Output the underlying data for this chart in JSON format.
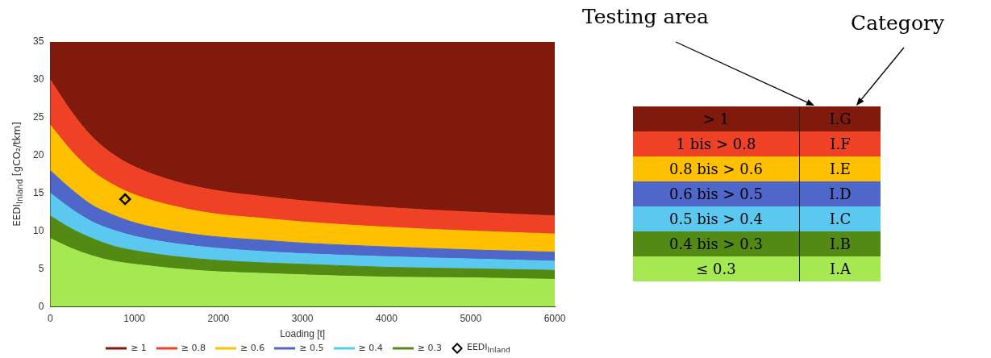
{
  "chart_data": [
    {
      "type": "area",
      "xlabel": "Loading [t]",
      "ylabel": "EEDI$_{Inland}$ [gCO₂/tkm]",
      "x": [
        0,
        250,
        500,
        750,
        1000,
        1500,
        2000,
        2500,
        3000,
        4000,
        5000,
        6000
      ],
      "series": [
        {
          "color": "#a6e851",
          "values": [
            9,
            7.7,
            6.7,
            6,
            5.6,
            5,
            4.6,
            4.4,
            4.2,
            3.9,
            3.8,
            3.6
          ]
        },
        {
          "name": "≥ 0.3",
          "color": "#538a14",
          "values": [
            3,
            2.6,
            2.3,
            2,
            1.8,
            1.6,
            1.5,
            1.4,
            1.4,
            1.3,
            1.2,
            1.2
          ]
        },
        {
          "name": "≥ 0.4",
          "color": "#5bc8f0",
          "values": [
            3,
            2.6,
            2.2,
            2.1,
            1.9,
            1.7,
            1.6,
            1.5,
            1.4,
            1.4,
            1.3,
            1.2
          ]
        },
        {
          "name": "≥ 0.5",
          "color": "#4f67c8",
          "values": [
            3,
            2.6,
            2.2,
            2,
            1.8,
            1.6,
            1.5,
            1.5,
            1.4,
            1.3,
            1.2,
            1.2
          ]
        },
        {
          "name": "≥ 0.6",
          "color": "#ffc000",
          "values": [
            6,
            5.1,
            4.5,
            4,
            3.7,
            3.3,
            3,
            2.9,
            2.8,
            2.6,
            2.5,
            2.4
          ]
        },
        {
          "name": "≥ 0.8",
          "color": "#ee4125",
          "values": [
            6,
            5.2,
            4.5,
            4,
            3.7,
            3.3,
            3.1,
            2.9,
            2.8,
            2.6,
            2.5,
            2.4
          ]
        },
        {
          "name": "≥ 1",
          "color": "#7f1a0d",
          "values": [
            5,
            9.2,
            12.6,
            14.9,
            16.5,
            18.5,
            19.7,
            20.4,
            21,
            21.9,
            22.5,
            23
          ]
        },
        {
          "name": "EEDI$_{Inland}$",
          "type": "scatter",
          "color": "#000000",
          "marker": "diamond",
          "x": [
            890
          ],
          "values": [
            14.2
          ]
        }
      ],
      "xlim": [
        0,
        6000
      ],
      "xticks": [
        0,
        1000,
        2000,
        3000,
        4000,
        5000,
        6000
      ],
      "ylim": [
        0,
        35
      ],
      "yticks": [
        0,
        5,
        10,
        15,
        20,
        25,
        30,
        35
      ],
      "stacked": true,
      "grid": false,
      "legend": "bottom"
    },
    {
      "type": "other",
      "annotations": [
        "Testing area",
        "Category"
      ],
      "categories": [
        "> 1",
        "1 bis > 0.8",
        "0.8 bis > 0.6",
        "0.6 bis > 0.5",
        "0.5 bis > 0.4",
        "0.4 bis > 0.3",
        "≤ 0.3"
      ],
      "y2_categories": [
        "I.G",
        "I.F",
        "I.E",
        "I.D",
        "I.C",
        "I.B",
        "I.A"
      ],
      "colors": [
        "#7f1a0d",
        "#ee4125",
        "#ffc000",
        "#4f67c8",
        "#5bc8f0",
        "#538a14",
        "#a6e851"
      ]
    }
  ]
}
